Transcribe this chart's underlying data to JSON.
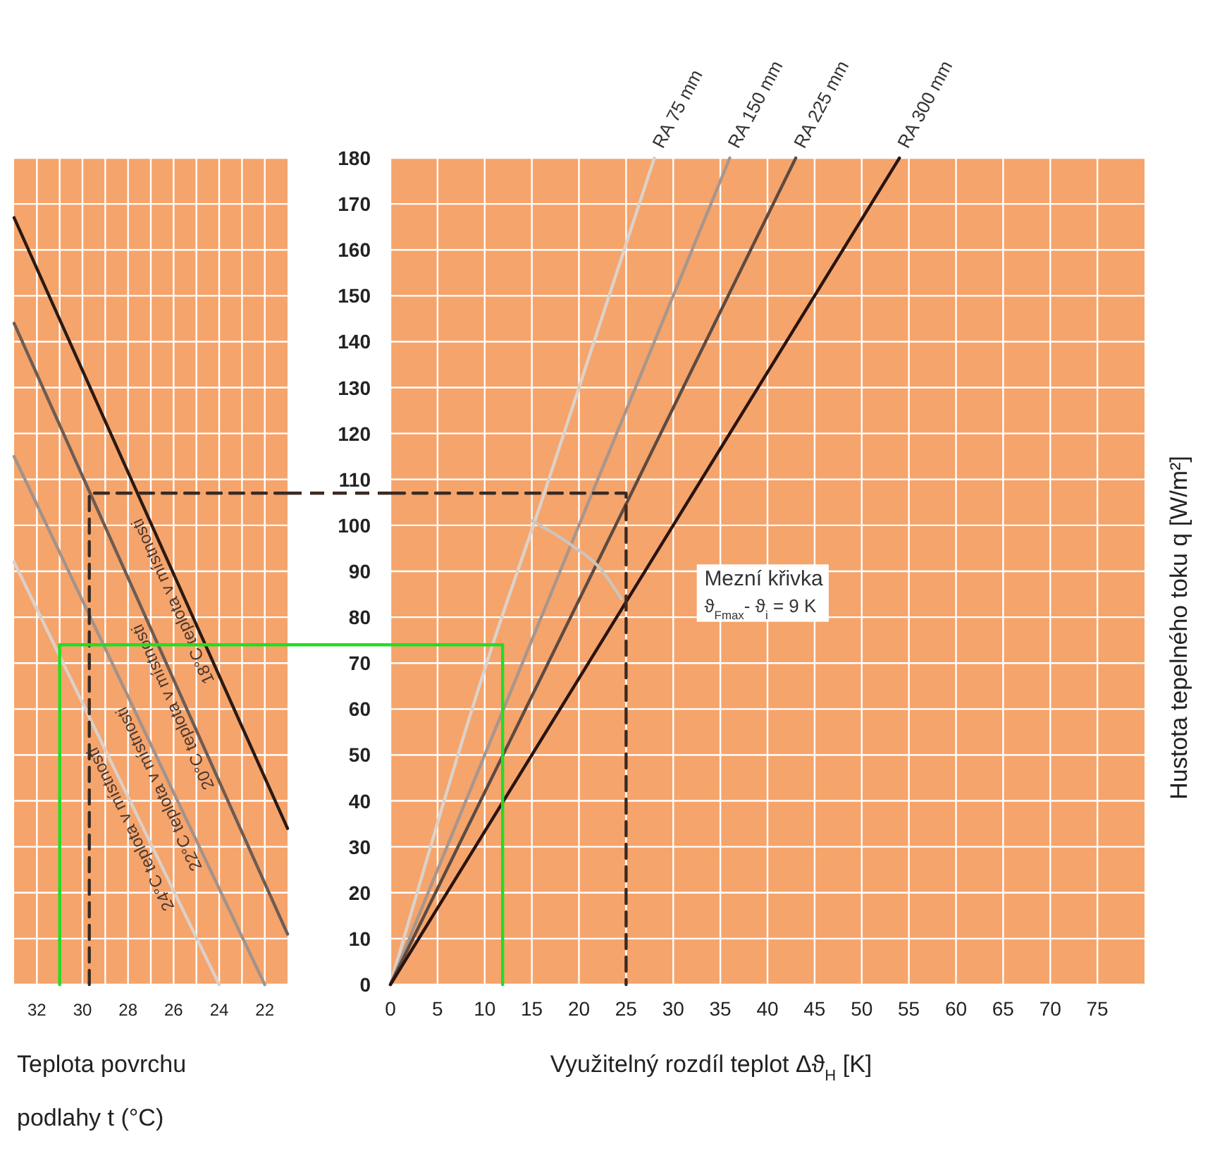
{
  "chart_data": [
    {
      "type": "line",
      "xlabel": "Teplota povrchu podlahy t (°C)",
      "xlim": [
        33,
        21
      ],
      "xticks": [
        {
          "value": 32,
          "label": "32"
        },
        {
          "value": 31,
          "label": null
        },
        {
          "value": 30,
          "label": "30"
        },
        {
          "value": 29,
          "label": null
        },
        {
          "value": 28,
          "label": "28"
        },
        {
          "value": 27,
          "label": null
        },
        {
          "value": 26,
          "label": "26"
        },
        {
          "value": 25,
          "label": null
        },
        {
          "value": 24,
          "label": "24"
        },
        {
          "value": 23,
          "label": null
        },
        {
          "value": 22,
          "label": "22"
        }
      ],
      "ylim": [
        0,
        180
      ],
      "yticks": [
        0,
        10,
        20,
        30,
        40,
        50,
        60,
        70,
        80,
        90,
        100,
        110,
        120,
        130,
        140,
        150,
        160,
        170,
        180
      ],
      "tick_labels": "x",
      "grid": true,
      "series": [
        {
          "name": "18°C teplota v místnosti",
          "color": "#2b1a12",
          "x": [
            33,
            21
          ],
          "values": [
            167,
            34
          ]
        },
        {
          "name": "20°C teplota v místnosti",
          "color": "#6e5c52",
          "x": [
            33,
            21
          ],
          "values": [
            144,
            11
          ]
        },
        {
          "name": "22°C teplota v místnosti",
          "color": "#a3928a",
          "x": [
            33,
            22
          ],
          "values": [
            115,
            0
          ]
        },
        {
          "name": "24°C teplota v místnosti",
          "color": "#dcd0c8",
          "x": [
            33,
            24
          ],
          "values": [
            92,
            0
          ]
        },
        {
          "color": "#3a2a22",
          "line_style": "dashed",
          "x": [
            29.7,
            29.7,
            21
          ],
          "values": [
            0,
            107,
            107
          ]
        },
        {
          "color": "#22dd22",
          "line_style": "solid",
          "x": [
            31,
            31,
            21
          ],
          "values": [
            0,
            74,
            74
          ]
        }
      ]
    },
    {
      "type": "line",
      "xlabel": "Využitelný rozdíl teplot Δϑ$_{H}$ [K]",
      "ylabel": "Hustota tepelného toku q [W/m²]",
      "xlim": [
        0,
        80
      ],
      "xticks": [
        0,
        5,
        10,
        15,
        20,
        25,
        30,
        35,
        40,
        45,
        50,
        55,
        60,
        65,
        70,
        75
      ],
      "ylim": [
        0,
        180
      ],
      "yticks": [
        0,
        10,
        20,
        30,
        40,
        50,
        60,
        70,
        80,
        90,
        100,
        110,
        120,
        130,
        140,
        150,
        160,
        170,
        180
      ],
      "grid": true,
      "annotations": [
        "Mezní křivka",
        "ϑ$_{Fmax}$- ϑ$_{i}$ = 9 K"
      ],
      "series": [
        {
          "name": "RA 75 mm",
          "color": "#dcd2ca",
          "x": [
            0,
            11,
            16,
            28
          ],
          "values": [
            0,
            75,
            105,
            180
          ]
        },
        {
          "name": "RA 150 mm",
          "color": "#a8968c",
          "x": [
            0,
            36
          ],
          "values": [
            0,
            180
          ]
        },
        {
          "name": "RA 225 mm",
          "color": "#5e4a40",
          "x": [
            0,
            43
          ],
          "values": [
            0,
            180
          ]
        },
        {
          "name": "RA 300 mm",
          "color": "#2a1410",
          "x": [
            0,
            54
          ],
          "values": [
            0,
            180
          ]
        },
        {
          "color": "#cfc3bb",
          "x": [
            15,
            19,
            22.5,
            24.5
          ],
          "values": [
            101,
            96,
            90,
            84
          ]
        },
        {
          "color": "#3a2a22",
          "line_style": "dashed",
          "x": [
            0,
            25,
            25
          ],
          "values": [
            107,
            107,
            0
          ]
        },
        {
          "color": "#22dd22",
          "line_style": "solid",
          "x": [
            0,
            11.9,
            11.9
          ],
          "values": [
            74,
            74,
            0
          ]
        }
      ]
    }
  ]
}
